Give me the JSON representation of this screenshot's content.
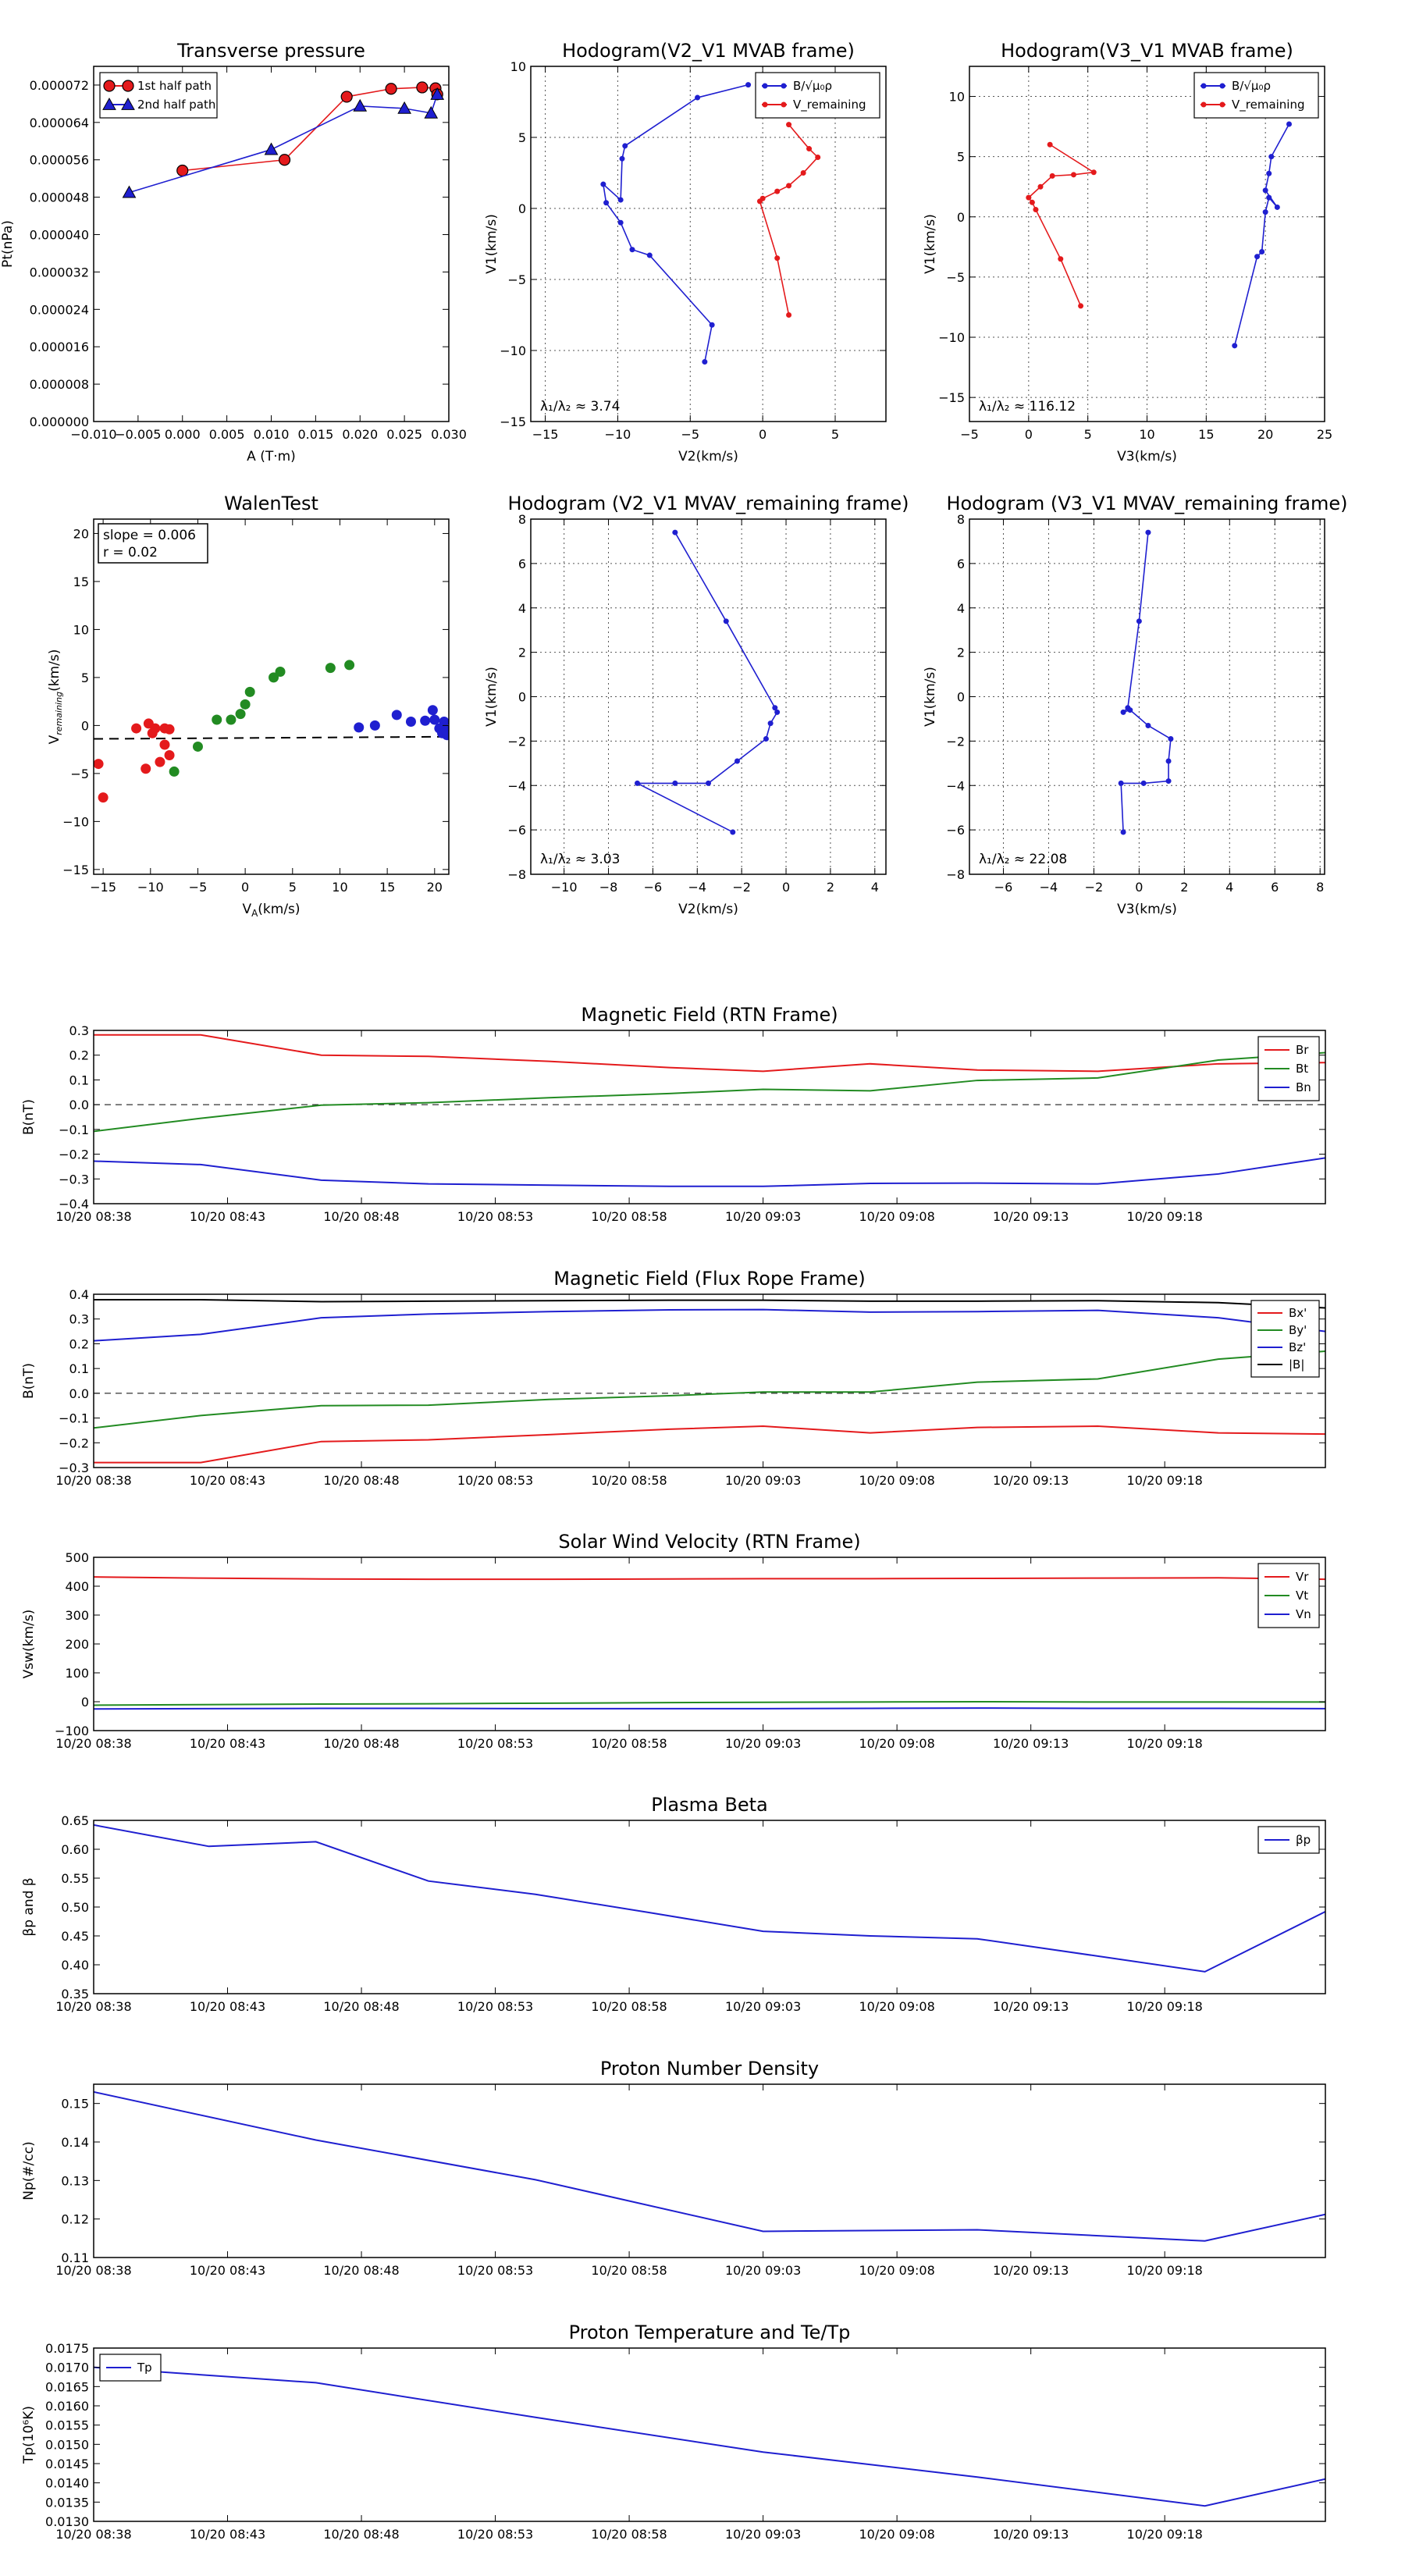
{
  "colors": {
    "red": "#e41a1c",
    "green": "#228b22",
    "blue": "#1f1fd0",
    "black": "#000000"
  },
  "time_ticks": [
    "10/20 08:38",
    "10/20 08:43",
    "10/20 08:48",
    "10/20 08:53",
    "10/20 08:58",
    "10/20 09:03",
    "10/20 09:08",
    "10/20 09:13",
    "10/20 09:18"
  ],
  "chart_data": [
    {
      "type": "scatter",
      "title": "Transverse pressure",
      "xlabel": "A (T·m)",
      "ylabel": "Pt(nPa)",
      "xlim": [
        -0.01,
        0.03
      ],
      "ylim": [
        0,
        7.6e-05
      ],
      "xticks": [
        -0.01,
        -0.005,
        0.0,
        0.005,
        0.01,
        0.015,
        0.02,
        0.025,
        0.03
      ],
      "xticklabels": [
        "−0.010",
        "−0.005",
        "0.000",
        "0.005",
        "0.010",
        "0.015",
        "0.020",
        "0.025",
        "0.030"
      ],
      "yticks": [
        0,
        8e-06,
        1.6e-05,
        2.4e-05,
        3.2e-05,
        4e-05,
        4.8e-05,
        5.6e-05,
        6.4e-05,
        7.2e-05
      ],
      "yticklabels": [
        "0.000000",
        "0.000008",
        "0.000016",
        "0.000024",
        "0.000032",
        "0.000040",
        "0.000048",
        "0.000056",
        "0.000064",
        "0.000072"
      ],
      "grid": false,
      "legend": "upper-left",
      "series": [
        {
          "name": "1st half path",
          "color": "red",
          "marker": "circle",
          "x": [
            -0.0,
            0.0115,
            0.0185,
            0.0235,
            0.027,
            0.0285,
            0.0287
          ],
          "y": [
            5.37e-05,
            5.6e-05,
            6.95e-05,
            7.12e-05,
            7.15e-05,
            7.13e-05,
            7e-05
          ]
        },
        {
          "name": "2nd half path",
          "color": "blue",
          "marker": "triangle",
          "x": [
            -0.006,
            0.01,
            0.02,
            0.025,
            0.028,
            0.0287
          ],
          "y": [
            4.9e-05,
            5.82e-05,
            6.75e-05,
            6.7e-05,
            6.6e-05,
            7e-05
          ]
        }
      ]
    },
    {
      "type": "line",
      "title": "Hodogram(V2_V1 MVAB frame)",
      "xlabel": "V2(km/s)",
      "ylabel": "V1(km/s)",
      "xlim": [
        -16,
        8.5
      ],
      "ylim": [
        -15,
        10
      ],
      "xticks": [
        -15,
        -10,
        -5,
        0,
        5
      ],
      "yticks": [
        -15,
        -10,
        -5,
        0,
        5,
        10
      ],
      "grid": true,
      "legend": "upper-right",
      "annotation": "λ₁/λ₂ ≈ 3.74",
      "series": [
        {
          "name": "B/√μ₀ρ",
          "color": "blue",
          "x": [
            -1.0,
            -4.5,
            -9.5,
            -9.7,
            -9.8,
            -11.0,
            -10.8,
            -9.8,
            -9.0,
            -7.8,
            -3.5,
            -4.0
          ],
          "y": [
            8.7,
            7.8,
            4.4,
            3.5,
            0.6,
            1.7,
            0.4,
            -1.0,
            -2.9,
            -3.3,
            -8.2,
            -10.8
          ]
        },
        {
          "name": "V_remaining",
          "color": "red",
          "x": [
            1.8,
            3.2,
            3.8,
            2.8,
            1.8,
            1.0,
            0.0,
            -0.2,
            1.0,
            1.8
          ],
          "y": [
            5.9,
            4.2,
            3.6,
            2.5,
            1.6,
            1.2,
            0.7,
            0.5,
            -3.5,
            -7.5
          ]
        }
      ]
    },
    {
      "type": "line",
      "title": "Hodogram(V3_V1 MVAB frame)",
      "xlabel": "V3(km/s)",
      "ylabel": "V1(km/s)",
      "xlim": [
        -5,
        25
      ],
      "ylim": [
        -17,
        12.5
      ],
      "xticks": [
        -5,
        0,
        5,
        10,
        15,
        20,
        25
      ],
      "yticks": [
        -15,
        -10,
        -5,
        0,
        5,
        10
      ],
      "grid": true,
      "legend": "upper-right",
      "annotation": "λ₁/λ₂ ≈ 116.12",
      "series": [
        {
          "name": "B/√μ₀ρ",
          "color": "blue",
          "x": [
            22.0,
            20.5,
            20.3,
            20.0,
            21.0,
            20.3,
            20.0,
            19.7,
            19.3,
            17.4
          ],
          "y": [
            7.7,
            5.0,
            3.6,
            2.2,
            0.8,
            1.6,
            0.4,
            -2.9,
            -3.3,
            -10.7
          ]
        },
        {
          "name": "V_remaining",
          "color": "red",
          "x": [
            1.8,
            5.5,
            3.8,
            2.0,
            1.0,
            0.0,
            0.3,
            0.6,
            2.7,
            4.4
          ],
          "y": [
            6.0,
            3.7,
            3.5,
            3.4,
            2.5,
            1.6,
            1.2,
            0.6,
            -3.5,
            -7.4
          ]
        }
      ]
    },
    {
      "type": "scatter",
      "title": "WalenTest",
      "xlabel": "V_A(km/s)",
      "ylabel": "V_remaining(km/s)",
      "xlim": [
        -16,
        21.5
      ],
      "ylim": [
        -15.5,
        21.5
      ],
      "xticks": [
        -15,
        -10,
        -5,
        0,
        5,
        10,
        15,
        20
      ],
      "yticks": [
        -15,
        -10,
        -5,
        0,
        5,
        10,
        15,
        20
      ],
      "grid": false,
      "annotation_lines": [
        "slope = 0.006",
        "r = 0.02"
      ],
      "fit_line": {
        "slope": 0.006,
        "intercept": -1.3
      },
      "series": [
        {
          "name": "",
          "color": "red",
          "x": [
            -15.5,
            -15.0,
            -11.5,
            -10.5,
            -10.2,
            -9.8,
            -9.5,
            -9.0,
            -8.5,
            -8.5,
            -8.0,
            -8.0
          ],
          "y": [
            -4.0,
            -7.5,
            -0.3,
            -4.5,
            0.2,
            -0.8,
            -0.3,
            -3.8,
            -2.0,
            -0.3,
            -3.1,
            -0.4
          ]
        },
        {
          "name": "",
          "color": "green",
          "x": [
            -7.5,
            -5.0,
            -3.0,
            -1.5,
            -0.5,
            0.0,
            0.5,
            3.0,
            3.7,
            9.0,
            11.0
          ],
          "y": [
            -4.8,
            -2.2,
            0.6,
            0.6,
            1.2,
            2.2,
            3.5,
            5.0,
            5.6,
            6.0,
            6.3
          ]
        },
        {
          "name": "",
          "color": "blue",
          "x": [
            12.0,
            13.7,
            16.0,
            17.5,
            19.0,
            19.8,
            20.0,
            20.5,
            20.8,
            21.0,
            21.2,
            21.3
          ],
          "y": [
            -0.2,
            0.0,
            1.1,
            0.4,
            0.5,
            1.6,
            0.6,
            -0.3,
            -0.8,
            0.4,
            -0.5,
            -1.0
          ]
        }
      ]
    },
    {
      "type": "line",
      "title": "Hodogram (V2_V1 MVAV_remaining frame)",
      "xlabel": "V2(km/s)",
      "ylabel": "V1(km/s)",
      "xlim": [
        -11.5,
        4.5
      ],
      "ylim": [
        -8,
        8
      ],
      "xticks": [
        -10,
        -8,
        -6,
        -4,
        -2,
        0,
        2,
        4
      ],
      "yticks": [
        -8,
        -6,
        -4,
        -2,
        0,
        2,
        4,
        6,
        8
      ],
      "grid": true,
      "annotation": "λ₁/λ₂ ≈ 3.03",
      "series": [
        {
          "name": "",
          "color": "blue",
          "x": [
            -5.0,
            -2.7,
            -0.5,
            -0.4,
            -0.7,
            -0.9,
            -2.2,
            -3.5,
            -5.0,
            -6.7,
            -2.4
          ],
          "y": [
            7.4,
            3.4,
            -0.5,
            -0.7,
            -1.2,
            -1.9,
            -2.9,
            -3.9,
            -3.9,
            -3.9,
            -6.1
          ]
        }
      ]
    },
    {
      "type": "line",
      "title": "Hodogram (V3_V1 MVAV_remaining frame)",
      "xlabel": "V3(km/s)",
      "ylabel": "V1(km/s)",
      "xlim": [
        -7.5,
        8.2
      ],
      "ylim": [
        -8,
        8
      ],
      "xticks": [
        -6,
        -4,
        -2,
        0,
        2,
        4,
        6,
        8
      ],
      "yticks": [
        -8,
        -6,
        -4,
        -2,
        0,
        2,
        4,
        6,
        8
      ],
      "grid": true,
      "annotation": "λ₁/λ₂ ≈ 22.08",
      "series": [
        {
          "name": "",
          "color": "blue",
          "x": [
            0.4,
            0.0,
            -0.5,
            -0.7,
            -0.4,
            0.4,
            1.4,
            1.3,
            1.3,
            0.2,
            -0.8,
            -0.7
          ],
          "y": [
            7.4,
            3.4,
            -0.5,
            -0.7,
            -0.6,
            -1.3,
            -1.9,
            -2.9,
            -3.8,
            -3.9,
            -3.9,
            -6.1
          ]
        }
      ]
    },
    {
      "type": "line",
      "title": "Magnetic Field (RTN Frame)",
      "ylabel": "B(nT)",
      "xlim": [
        0,
        46
      ],
      "ylim": [
        -0.4,
        0.3
      ],
      "yticks": [
        -0.4,
        -0.3,
        -0.2,
        -0.1,
        0.0,
        0.1,
        0.2,
        0.3
      ],
      "yticklabels": [
        "−0.4",
        "−0.3",
        "−0.2",
        "−0.1",
        "0.0",
        "0.1",
        "0.2",
        "0.3"
      ],
      "zero_line": true,
      "legend": "right",
      "x": [
        0,
        4,
        8.5,
        12.5,
        17,
        21.5,
        25,
        29,
        33,
        37.5,
        42,
        46
      ],
      "series": [
        {
          "name": "Br",
          "color": "red",
          "values": [
            0.282,
            0.282,
            0.2,
            0.195,
            0.175,
            0.15,
            0.135,
            0.165,
            0.14,
            0.135,
            0.165,
            0.17
          ]
        },
        {
          "name": "Bt",
          "color": "green",
          "values": [
            -0.108,
            -0.055,
            -0.002,
            0.008,
            0.028,
            0.045,
            0.062,
            0.056,
            0.098,
            0.108,
            0.18,
            0.21
          ]
        },
        {
          "name": "Bn",
          "color": "blue",
          "values": [
            -0.228,
            -0.242,
            -0.305,
            -0.32,
            -0.325,
            -0.33,
            -0.33,
            -0.318,
            -0.317,
            -0.32,
            -0.28,
            -0.215
          ]
        }
      ]
    },
    {
      "type": "line",
      "title": "Magnetic Field (Flux Rope Frame)",
      "ylabel": "B(nT)",
      "xlim": [
        0,
        46
      ],
      "ylim": [
        -0.3,
        0.4
      ],
      "yticks": [
        -0.3,
        -0.2,
        -0.1,
        0.0,
        0.1,
        0.2,
        0.3,
        0.4
      ],
      "yticklabels": [
        "−0.3",
        "−0.2",
        "−0.1",
        "0.0",
        "0.1",
        "0.2",
        "0.3",
        "0.4"
      ],
      "zero_line": true,
      "legend": "right",
      "x": [
        0,
        4,
        8.5,
        12.5,
        17,
        21.5,
        25,
        29,
        33,
        37.5,
        42,
        46
      ],
      "series": [
        {
          "name": "Bx'",
          "color": "red",
          "values": [
            -0.28,
            -0.28,
            -0.195,
            -0.188,
            -0.167,
            -0.145,
            -0.133,
            -0.16,
            -0.138,
            -0.133,
            -0.16,
            -0.165
          ]
        },
        {
          "name": "By'",
          "color": "green",
          "values": [
            -0.14,
            -0.09,
            -0.05,
            -0.048,
            -0.025,
            -0.01,
            0.005,
            0.005,
            0.045,
            0.058,
            0.138,
            0.17
          ]
        },
        {
          "name": "Bz'",
          "color": "blue",
          "values": [
            0.212,
            0.238,
            0.305,
            0.32,
            0.33,
            0.337,
            0.338,
            0.328,
            0.33,
            0.335,
            0.305,
            0.25
          ]
        },
        {
          "name": "|B|",
          "color": "black",
          "values": [
            0.378,
            0.378,
            0.37,
            0.372,
            0.374,
            0.376,
            0.376,
            0.372,
            0.372,
            0.374,
            0.366,
            0.345
          ]
        }
      ]
    },
    {
      "type": "line",
      "title": "Solar Wind Velocity (RTN Frame)",
      "ylabel": "Vsw(km/s)",
      "xlim": [
        0,
        46
      ],
      "ylim": [
        -100,
        500
      ],
      "yticks": [
        -100,
        0,
        100,
        200,
        300,
        400,
        500
      ],
      "yticklabels": [
        "−100",
        "0",
        "100",
        "200",
        "300",
        "400",
        "500"
      ],
      "legend": "right",
      "x": [
        0,
        4,
        8.5,
        12.5,
        17,
        21.5,
        25,
        29,
        33,
        37.5,
        42,
        46
      ],
      "series": [
        {
          "name": "Vr",
          "color": "red",
          "values": [
            432,
            428,
            425,
            424,
            424,
            425,
            426,
            426,
            427,
            428,
            429,
            424
          ]
        },
        {
          "name": "Vt",
          "color": "green",
          "values": [
            -12,
            -10,
            -8,
            -7,
            -5,
            -3,
            -2,
            -1,
            0,
            -1,
            -1,
            -1
          ]
        },
        {
          "name": "Vn",
          "color": "blue",
          "values": [
            -25,
            -24,
            -23,
            -23,
            -24,
            -24,
            -24,
            -23,
            -22,
            -23,
            -23,
            -24
          ]
        }
      ]
    },
    {
      "type": "line",
      "title": "Plasma Beta",
      "ylabel": "βp and β",
      "xlim": [
        0,
        46
      ],
      "ylim": [
        0.35,
        0.65
      ],
      "yticks": [
        0.35,
        0.4,
        0.45,
        0.5,
        0.55,
        0.6,
        0.65
      ],
      "yticklabels": [
        "0.35",
        "0.40",
        "0.45",
        "0.50",
        "0.55",
        "0.60",
        "0.65"
      ],
      "legend": "upper-right",
      "x": [
        0,
        4.3,
        8.3,
        12.5,
        16.5,
        20.8,
        25,
        29,
        33,
        37.5,
        41.5,
        46
      ],
      "series": [
        {
          "name": "βp",
          "color": "blue",
          "values": [
            0.642,
            0.605,
            0.613,
            0.545,
            0.522,
            0.49,
            0.458,
            0.45,
            0.445,
            0.415,
            0.388,
            0.492
          ]
        }
      ]
    },
    {
      "type": "line",
      "title": "Proton Number Density",
      "ylabel": "Np(#/cc)",
      "xlim": [
        0,
        46
      ],
      "ylim": [
        0.11,
        0.155
      ],
      "yticks": [
        0.11,
        0.12,
        0.13,
        0.14,
        0.15
      ],
      "yticklabels": [
        "0.11",
        "0.12",
        "0.13",
        "0.14",
        "0.15"
      ],
      "x": [
        0,
        8.3,
        16.5,
        25,
        33,
        41.5,
        46
      ],
      "series": [
        {
          "name": "",
          "color": "blue",
          "values": [
            0.153,
            0.1405,
            0.1302,
            0.1168,
            0.1172,
            0.1143,
            0.1212
          ]
        }
      ]
    },
    {
      "type": "line",
      "title": "Proton Temperature and Te/Tp",
      "ylabel": "Tp(10⁶K)",
      "xlim": [
        0,
        46
      ],
      "ylim": [
        0.013,
        0.0175
      ],
      "yticks": [
        0.013,
        0.0135,
        0.014,
        0.0145,
        0.015,
        0.0155,
        0.016,
        0.0165,
        0.017,
        0.0175
      ],
      "yticklabels": [
        "0.0130",
        "0.0135",
        "0.0140",
        "0.0145",
        "0.0150",
        "0.0155",
        "0.0160",
        "0.0165",
        "0.0170",
        "0.0175"
      ],
      "legend": "upper-left",
      "x": [
        0,
        8.3,
        16.5,
        25,
        33,
        41.5,
        46
      ],
      "series": [
        {
          "name": "Tp",
          "color": "blue",
          "values": [
            0.017,
            0.0166,
            0.0157,
            0.0148,
            0.01415,
            0.0134,
            0.0141
          ]
        }
      ]
    }
  ]
}
